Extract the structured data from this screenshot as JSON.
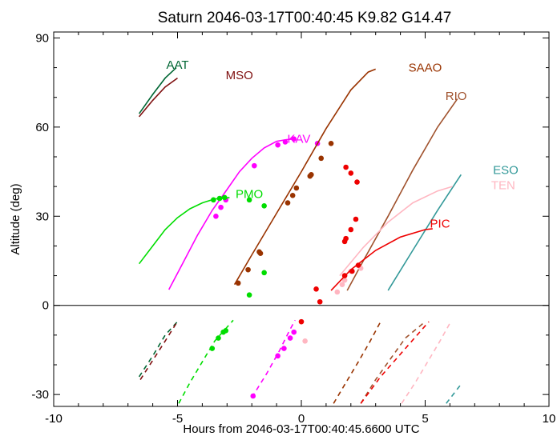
{
  "chart_data": {
    "type": "line",
    "title": "Saturn 2046-03-17T00:40:45  K9.82  G14.47",
    "xlabel": "Hours from 2046-03-17T00:40:45.6600 UTC",
    "ylabel": "Altitude (deg)",
    "xlim": [
      -10,
      10
    ],
    "ylim": [
      -34,
      92
    ],
    "xticks": [
      -10,
      -5,
      0,
      5,
      10
    ],
    "xtick_labels": [
      "-10",
      "-5",
      "0",
      "5",
      "10"
    ],
    "yticks": [
      -30,
      0,
      30,
      60,
      90
    ],
    "ytick_labels": [
      "-30",
      "0",
      "30",
      "60",
      "90"
    ],
    "reference_line": 0,
    "grid": false,
    "series": [
      {
        "name": "AAT",
        "color": "#006633",
        "label_at": [
          -5.0,
          81
        ],
        "solid": [
          [
            -6.55,
            64.5
          ],
          [
            -6.0,
            71
          ],
          [
            -5.5,
            76.5
          ],
          [
            -5.05,
            80
          ]
        ],
        "dashed": [
          [
            -6.55,
            -24
          ],
          [
            -6.0,
            -17
          ],
          [
            -5.5,
            -10
          ],
          [
            -4.95,
            -5
          ]
        ],
        "points": []
      },
      {
        "name": "",
        "color": "#7f1010",
        "label_at": null,
        "solid": [
          [
            -6.55,
            63.5
          ],
          [
            -6.0,
            69
          ],
          [
            -5.5,
            73.5
          ],
          [
            -5.0,
            76.5
          ]
        ],
        "dashed": [
          [
            -6.5,
            -25
          ],
          [
            -6.0,
            -18.5
          ],
          [
            -5.5,
            -12
          ],
          [
            -5.05,
            -6
          ]
        ],
        "points": []
      },
      {
        "name": "MSO",
        "color": "#7f1010",
        "label_at": [
          -2.5,
          77.5
        ],
        "solid": [],
        "dashed": [],
        "points": []
      },
      {
        "name": "KAV",
        "color": "#ff00ff",
        "label_at": [
          -0.1,
          56
        ],
        "solid": [
          [
            -5.35,
            5.3
          ],
          [
            -4.8,
            14
          ],
          [
            -4.2,
            23.5
          ],
          [
            -3.6,
            32
          ],
          [
            -3.0,
            39
          ],
          [
            -2.5,
            45
          ],
          [
            -2.0,
            49.5
          ],
          [
            -1.5,
            53
          ],
          [
            -1.0,
            55.2
          ],
          [
            -0.6,
            55.8
          ],
          [
            -0.25,
            56
          ]
        ],
        "dashed": [
          [
            -2.0,
            -31
          ],
          [
            -1.4,
            -23
          ],
          [
            -0.9,
            -15.5
          ],
          [
            -0.45,
            -8
          ],
          [
            -0.25,
            -5
          ]
        ],
        "points": [
          [
            -3.45,
            30
          ],
          [
            -3.25,
            33
          ],
          [
            -3.05,
            35.5
          ],
          [
            -1.9,
            47
          ],
          [
            -0.95,
            54
          ],
          [
            -0.65,
            55
          ],
          [
            -0.3,
            56
          ],
          [
            0.65,
            54.5
          ],
          [
            -1.95,
            -30.5
          ],
          [
            -0.95,
            -17
          ],
          [
            -0.7,
            -14.5
          ],
          [
            -0.45,
            -11
          ],
          [
            -0.3,
            -9
          ]
        ]
      },
      {
        "name": "PMO",
        "color": "#00dd00",
        "label_at": [
          -2.1,
          37.5
        ],
        "solid": [
          [
            -6.55,
            14
          ],
          [
            -6.0,
            20
          ],
          [
            -5.5,
            25.5
          ],
          [
            -5.0,
            29.5
          ],
          [
            -4.5,
            32.5
          ],
          [
            -4.0,
            34.5
          ],
          [
            -3.5,
            35.8
          ],
          [
            -3.0,
            36.2
          ],
          [
            -2.9,
            36.3
          ]
        ],
        "dashed": [
          [
            -4.95,
            -33
          ],
          [
            -4.5,
            -26
          ],
          [
            -4.0,
            -19
          ],
          [
            -3.5,
            -12
          ],
          [
            -2.75,
            -5
          ]
        ],
        "points": [
          [
            -3.55,
            35.5
          ],
          [
            -3.3,
            36
          ],
          [
            -3.1,
            36.3
          ],
          [
            -2.1,
            35.5
          ],
          [
            -1.5,
            33.5
          ],
          [
            -1.5,
            11
          ],
          [
            -2.1,
            3.5
          ],
          [
            -3.6,
            -14.5
          ],
          [
            -3.35,
            -11
          ],
          [
            -3.15,
            -9
          ],
          [
            -3.05,
            -8.5
          ]
        ]
      },
      {
        "name": "SAAO",
        "color": "#993300",
        "label_at": [
          5.0,
          80
        ],
        "solid": [
          [
            -2.7,
            7
          ],
          [
            -2.0,
            17
          ],
          [
            -1.0,
            31
          ],
          [
            0.0,
            45
          ],
          [
            1.0,
            59.5
          ],
          [
            2.0,
            72.5
          ],
          [
            2.7,
            78.5
          ],
          [
            3.0,
            79.5
          ]
        ],
        "dashed": [
          [
            1.3,
            -33
          ],
          [
            1.8,
            -26
          ],
          [
            2.3,
            -19
          ],
          [
            2.75,
            -12.5
          ],
          [
            3.2,
            -5.5
          ]
        ],
        "points": [
          [
            -2.55,
            7.5
          ],
          [
            -2.15,
            12
          ],
          [
            -1.65,
            17.5
          ],
          [
            -1.7,
            18
          ],
          [
            -0.55,
            34.5
          ],
          [
            -0.35,
            37
          ],
          [
            -0.2,
            39.5
          ],
          [
            0.35,
            43.5
          ],
          [
            0.4,
            44
          ],
          [
            0.8,
            49.5
          ],
          [
            1.2,
            54.5
          ]
        ]
      },
      {
        "name": "RIO",
        "color": "#a0522d",
        "label_at": [
          6.25,
          70.5
        ],
        "solid": [
          [
            1.85,
            5
          ],
          [
            2.5,
            15
          ],
          [
            3.5,
            30
          ],
          [
            4.5,
            45.5
          ],
          [
            5.5,
            60
          ],
          [
            6.3,
            69.5
          ]
        ],
        "dashed": [
          [
            2.4,
            -33
          ],
          [
            3.0,
            -25
          ],
          [
            3.6,
            -18
          ],
          [
            4.2,
            -11
          ],
          [
            5.0,
            -5.5
          ]
        ],
        "points": []
      },
      {
        "name": "ESO",
        "color": "#339999",
        "label_at": [
          8.25,
          45.5
        ],
        "solid": [
          [
            3.5,
            5
          ],
          [
            4.5,
            18.5
          ],
          [
            5.5,
            32
          ],
          [
            6.45,
            44
          ]
        ],
        "dashed": [
          [
            5.85,
            -33
          ],
          [
            6.5,
            -26
          ]
        ],
        "points": []
      },
      {
        "name": "TEN",
        "color": "#ffb6c1",
        "label_at": [
          8.15,
          40.5
        ],
        "solid": [
          [
            1.55,
            10
          ],
          [
            2.5,
            19.5
          ],
          [
            3.5,
            28
          ],
          [
            4.5,
            34.5
          ],
          [
            5.5,
            38.5
          ],
          [
            6.1,
            40
          ]
        ],
        "dashed": [
          [
            4.05,
            -33
          ],
          [
            4.6,
            -26
          ],
          [
            5.1,
            -19
          ],
          [
            5.6,
            -12
          ],
          [
            6.0,
            -6
          ]
        ],
        "points": [
          [
            1.45,
            4.5
          ],
          [
            1.65,
            7
          ],
          [
            1.75,
            8.5
          ],
          [
            2.0,
            11.5
          ],
          [
            2.4,
            12.5
          ],
          [
            0.15,
            -12
          ]
        ]
      },
      {
        "name": "PIC",
        "color": "#ee0000",
        "label_at": [
          5.6,
          27.5
        ],
        "solid": [
          [
            1.2,
            5
          ],
          [
            2.0,
            12
          ],
          [
            3.0,
            18.5
          ],
          [
            4.0,
            23
          ],
          [
            5.0,
            25.5
          ],
          [
            5.3,
            25.8
          ]
        ],
        "dashed": [
          [
            2.4,
            -33
          ],
          [
            3.2,
            -24
          ],
          [
            4.2,
            -14.5
          ],
          [
            5.15,
            -5.5
          ]
        ],
        "points": [
          [
            0.6,
            5.5
          ],
          [
            0.75,
            1.2
          ],
          [
            1.75,
            10
          ],
          [
            2.05,
            11.5
          ],
          [
            2.3,
            13.5
          ],
          [
            1.75,
            21.5
          ],
          [
            1.8,
            22.5
          ],
          [
            2.0,
            25.5
          ],
          [
            2.2,
            29
          ],
          [
            1.8,
            46.5
          ],
          [
            2.0,
            44.5
          ],
          [
            2.25,
            41.5
          ],
          [
            0.0,
            -5.5
          ]
        ]
      }
    ]
  }
}
